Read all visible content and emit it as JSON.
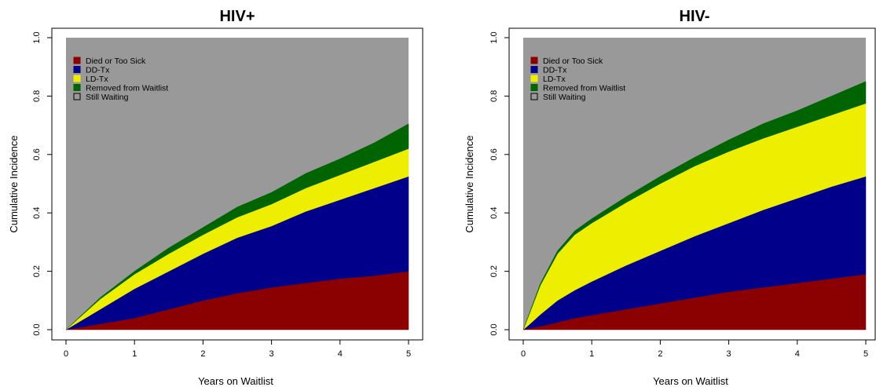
{
  "chart_data": [
    {
      "type": "area",
      "stacked": true,
      "title": "HIV+",
      "xlabel": "Years on Waitlist",
      "ylabel": "Cumulative Incidence",
      "xlim": [
        0,
        5
      ],
      "ylim": [
        0,
        1
      ],
      "x_ticks": [
        "0",
        "1",
        "2",
        "3",
        "4",
        "5"
      ],
      "y_ticks": [
        "0.0",
        "0.2",
        "0.4",
        "0.6",
        "0.8",
        "1.0"
      ],
      "legend_position": "top-left",
      "grid": false,
      "x": [
        0,
        0.5,
        1,
        1.5,
        2,
        2.5,
        3,
        3.5,
        4,
        4.5,
        5
      ],
      "series": [
        {
          "name": "Died or Too Sick",
          "color": "#8b0000",
          "values": [
            0,
            0.02,
            0.04,
            0.07,
            0.1,
            0.125,
            0.145,
            0.16,
            0.175,
            0.185,
            0.2
          ]
        },
        {
          "name": "DD-Tx",
          "color": "#00008b",
          "values": [
            0,
            0.05,
            0.1,
            0.13,
            0.16,
            0.19,
            0.21,
            0.245,
            0.27,
            0.3,
            0.325
          ]
        },
        {
          "name": "LD-Tx",
          "color": "#eeee00",
          "values": [
            0,
            0.035,
            0.05,
            0.06,
            0.065,
            0.07,
            0.075,
            0.08,
            0.085,
            0.09,
            0.095
          ]
        },
        {
          "name": "Removed from Waitlist",
          "color": "#006400",
          "values": [
            0,
            0.005,
            0.01,
            0.02,
            0.025,
            0.035,
            0.04,
            0.05,
            0.055,
            0.065,
            0.085
          ]
        },
        {
          "name": "Still Waiting",
          "color": "#999999",
          "remainder": true
        }
      ]
    },
    {
      "type": "area",
      "stacked": true,
      "title": "HIV-",
      "xlabel": "Years on Waitlist",
      "ylabel": "Cumulative Incidence",
      "xlim": [
        0,
        5
      ],
      "ylim": [
        0,
        1
      ],
      "x_ticks": [
        "0",
        "1",
        "2",
        "3",
        "4",
        "5"
      ],
      "y_ticks": [
        "0.0",
        "0.2",
        "0.4",
        "0.6",
        "0.8",
        "1.0"
      ],
      "legend_position": "top-left",
      "grid": false,
      "x": [
        0,
        0.1,
        0.25,
        0.5,
        0.75,
        1,
        1.5,
        2,
        2.5,
        3,
        3.5,
        4,
        4.5,
        5
      ],
      "series": [
        {
          "name": "Died or Too Sick",
          "color": "#8b0000",
          "values": [
            0,
            0.005,
            0.012,
            0.025,
            0.04,
            0.05,
            0.07,
            0.09,
            0.11,
            0.13,
            0.145,
            0.16,
            0.175,
            0.19
          ]
        },
        {
          "name": "DD-Tx",
          "color": "#00008b",
          "values": [
            0,
            0.015,
            0.04,
            0.075,
            0.095,
            0.115,
            0.15,
            0.18,
            0.21,
            0.235,
            0.265,
            0.29,
            0.315,
            0.335
          ]
        },
        {
          "name": "LD-Tx",
          "color": "#eeee00",
          "values": [
            0,
            0.04,
            0.1,
            0.16,
            0.19,
            0.2,
            0.215,
            0.23,
            0.24,
            0.245,
            0.245,
            0.245,
            0.245,
            0.25
          ]
        },
        {
          "name": "Removed from Waitlist",
          "color": "#006400",
          "values": [
            0,
            0.003,
            0.006,
            0.01,
            0.013,
            0.015,
            0.02,
            0.025,
            0.03,
            0.04,
            0.05,
            0.055,
            0.065,
            0.075
          ]
        },
        {
          "name": "Still Waiting",
          "color": "#999999",
          "remainder": true
        }
      ]
    }
  ]
}
